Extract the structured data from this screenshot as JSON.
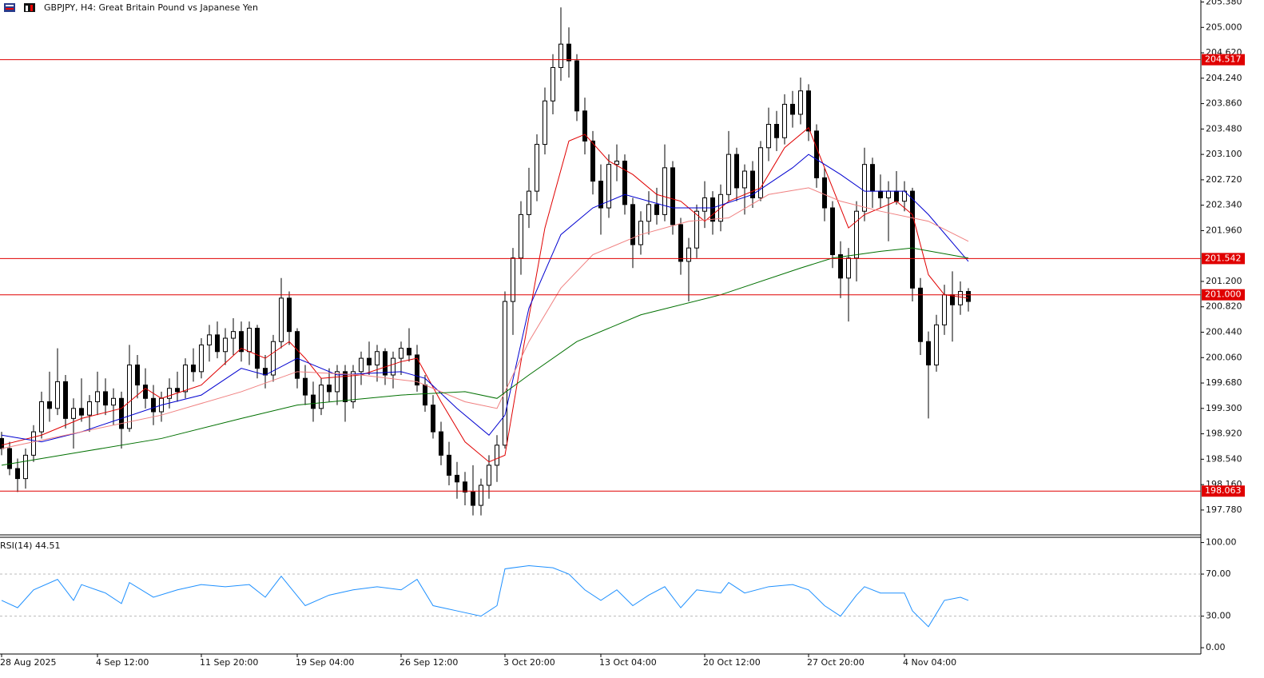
{
  "chart_data": {
    "type": "candlestick",
    "title": "GBPJPY, H4:  Great Britain Pound vs Japanese Yen",
    "categories": [
      "28 Aug 2025",
      null,
      null,
      null,
      null,
      null,
      null,
      null,
      null,
      null,
      null,
      null,
      "4 Sep 12:00",
      null,
      null,
      null,
      null,
      null,
      null,
      null,
      null,
      null,
      null,
      null,
      null,
      "11 Sep 20:00",
      null,
      null,
      null,
      null,
      null,
      null,
      null,
      null,
      null,
      null,
      null,
      "19 Sep 04:00",
      null,
      null,
      null,
      null,
      null,
      null,
      null,
      null,
      null,
      null,
      null,
      null,
      "26 Sep 12:00",
      null,
      null,
      null,
      null,
      null,
      null,
      null,
      null,
      null,
      null,
      null,
      null,
      "3 Oct 20:00",
      null,
      null,
      null,
      null,
      null,
      null,
      null,
      null,
      null,
      null,
      null,
      "13 Oct 04:00",
      null,
      null,
      null,
      null,
      null,
      null,
      null,
      null,
      null,
      null,
      null,
      null,
      "20 Oct 12:00",
      null,
      null,
      null,
      null,
      null,
      null,
      null,
      null,
      null,
      null,
      null,
      null,
      "27 Oct 20:00",
      null,
      null,
      null,
      null,
      null,
      null,
      null,
      null,
      null,
      null,
      null,
      "4 Nov 04:00",
      null,
      null,
      null,
      null,
      null,
      null,
      null,
      null
    ],
    "ohlc": [
      [
        198.85,
        198.95,
        198.6,
        198.7
      ],
      [
        198.7,
        198.8,
        198.3,
        198.4
      ],
      [
        198.4,
        198.55,
        198.05,
        198.25
      ],
      [
        198.25,
        198.7,
        198.1,
        198.6
      ],
      [
        198.6,
        199.05,
        198.5,
        198.95
      ],
      [
        198.95,
        199.55,
        198.85,
        199.4
      ],
      [
        199.4,
        199.85,
        199.1,
        199.3
      ],
      [
        199.3,
        200.2,
        199.2,
        199.7
      ],
      [
        199.7,
        199.8,
        199.0,
        199.15
      ],
      [
        199.15,
        199.45,
        198.7,
        199.3
      ],
      [
        199.3,
        199.75,
        199.1,
        199.2
      ],
      [
        199.2,
        199.5,
        198.95,
        199.4
      ],
      [
        199.4,
        199.85,
        199.2,
        199.55
      ],
      [
        199.55,
        199.75,
        199.2,
        199.35
      ],
      [
        199.35,
        199.6,
        199.05,
        199.45
      ],
      [
        199.45,
        199.55,
        198.7,
        199.0
      ],
      [
        199.0,
        200.25,
        198.95,
        199.95
      ],
      [
        199.95,
        200.1,
        199.45,
        199.65
      ],
      [
        199.65,
        199.9,
        199.3,
        199.45
      ],
      [
        199.45,
        199.65,
        199.05,
        199.25
      ],
      [
        199.25,
        199.55,
        199.1,
        199.45
      ],
      [
        199.45,
        199.75,
        199.3,
        199.6
      ],
      [
        199.6,
        199.85,
        199.4,
        199.55
      ],
      [
        199.55,
        200.05,
        199.45,
        199.95
      ],
      [
        199.95,
        200.2,
        199.7,
        199.85
      ],
      [
        199.85,
        200.35,
        199.75,
        200.25
      ],
      [
        200.25,
        200.55,
        200.0,
        200.4
      ],
      [
        200.4,
        200.6,
        200.05,
        200.15
      ],
      [
        200.15,
        200.5,
        199.95,
        200.35
      ],
      [
        200.35,
        200.65,
        200.1,
        200.45
      ],
      [
        200.45,
        200.6,
        200.0,
        200.15
      ],
      [
        200.15,
        200.6,
        199.95,
        200.5
      ],
      [
        200.5,
        200.55,
        199.75,
        199.9
      ],
      [
        199.9,
        200.1,
        199.6,
        199.8
      ],
      [
        199.8,
        200.4,
        199.7,
        200.3
      ],
      [
        200.3,
        201.25,
        200.2,
        200.95
      ],
      [
        200.95,
        201.05,
        200.25,
        200.45
      ],
      [
        200.45,
        200.5,
        199.6,
        199.75
      ],
      [
        199.75,
        199.95,
        199.35,
        199.5
      ],
      [
        199.5,
        199.7,
        199.1,
        199.3
      ],
      [
        199.3,
        199.75,
        199.2,
        199.65
      ],
      [
        199.65,
        199.9,
        199.4,
        199.55
      ],
      [
        199.55,
        199.95,
        199.35,
        199.85
      ],
      [
        199.85,
        199.95,
        199.1,
        199.4
      ],
      [
        199.4,
        199.95,
        199.3,
        199.85
      ],
      [
        199.85,
        200.15,
        199.65,
        200.05
      ],
      [
        200.05,
        200.3,
        199.8,
        199.95
      ],
      [
        199.95,
        200.25,
        199.7,
        200.15
      ],
      [
        200.15,
        200.2,
        199.65,
        199.8
      ],
      [
        199.8,
        200.15,
        199.6,
        200.05
      ],
      [
        200.05,
        200.3,
        199.8,
        200.2
      ],
      [
        200.2,
        200.5,
        200.0,
        200.1
      ],
      [
        200.1,
        200.25,
        199.55,
        199.65
      ],
      [
        199.65,
        199.8,
        199.25,
        199.35
      ],
      [
        199.35,
        199.5,
        198.85,
        198.95
      ],
      [
        198.95,
        199.1,
        198.45,
        198.6
      ],
      [
        198.6,
        198.8,
        198.15,
        198.3
      ],
      [
        198.3,
        198.5,
        197.95,
        198.2
      ],
      [
        198.2,
        198.35,
        197.85,
        198.05
      ],
      [
        198.05,
        198.45,
        197.7,
        197.85
      ],
      [
        197.85,
        198.25,
        197.7,
        198.15
      ],
      [
        198.15,
        198.6,
        197.95,
        198.45
      ],
      [
        198.45,
        198.9,
        198.2,
        198.75
      ],
      [
        198.75,
        201.05,
        198.7,
        200.9
      ],
      [
        200.9,
        201.7,
        200.4,
        201.55
      ],
      [
        201.55,
        202.4,
        201.3,
        202.2
      ],
      [
        202.2,
        202.9,
        202.0,
        202.55
      ],
      [
        202.55,
        203.4,
        202.4,
        203.25
      ],
      [
        203.25,
        204.1,
        203.1,
        203.9
      ],
      [
        203.9,
        204.6,
        203.7,
        204.4
      ],
      [
        204.4,
        205.3,
        204.2,
        204.75
      ],
      [
        204.75,
        205.0,
        204.25,
        204.5
      ],
      [
        204.5,
        204.6,
        203.6,
        203.75
      ],
      [
        203.75,
        203.95,
        203.1,
        203.3
      ],
      [
        203.3,
        203.45,
        202.5,
        202.7
      ],
      [
        202.7,
        202.95,
        201.9,
        202.3
      ],
      [
        202.3,
        203.1,
        202.15,
        202.95
      ],
      [
        202.95,
        203.25,
        202.7,
        203.0
      ],
      [
        203.0,
        203.1,
        202.2,
        202.35
      ],
      [
        202.35,
        202.45,
        201.4,
        201.75
      ],
      [
        201.75,
        202.25,
        201.6,
        202.1
      ],
      [
        202.1,
        202.55,
        201.9,
        202.35
      ],
      [
        202.35,
        202.6,
        202.05,
        202.2
      ],
      [
        202.2,
        203.25,
        202.1,
        202.9
      ],
      [
        202.9,
        203.0,
        201.9,
        202.05
      ],
      [
        202.05,
        202.15,
        201.3,
        201.5
      ],
      [
        201.5,
        201.85,
        200.9,
        201.7
      ],
      [
        201.7,
        202.35,
        201.55,
        202.25
      ],
      [
        202.25,
        202.7,
        202.0,
        202.45
      ],
      [
        202.45,
        202.55,
        201.9,
        202.1
      ],
      [
        202.1,
        202.65,
        201.95,
        202.5
      ],
      [
        202.5,
        203.45,
        202.4,
        203.1
      ],
      [
        203.1,
        203.2,
        202.4,
        202.6
      ],
      [
        202.6,
        202.95,
        202.2,
        202.85
      ],
      [
        202.85,
        203.0,
        202.3,
        202.45
      ],
      [
        202.45,
        203.3,
        202.4,
        203.2
      ],
      [
        203.2,
        203.8,
        203.0,
        203.55
      ],
      [
        203.55,
        203.75,
        203.15,
        203.35
      ],
      [
        203.35,
        204.0,
        203.25,
        203.85
      ],
      [
        203.85,
        204.05,
        203.5,
        203.7
      ],
      [
        203.7,
        204.25,
        203.55,
        204.05
      ],
      [
        204.05,
        204.15,
        203.3,
        203.45
      ],
      [
        203.45,
        203.55,
        202.6,
        202.75
      ],
      [
        202.75,
        202.9,
        202.1,
        202.3
      ],
      [
        202.3,
        202.4,
        201.4,
        201.6
      ],
      [
        201.6,
        201.8,
        200.95,
        201.25
      ],
      [
        201.25,
        201.7,
        200.6,
        201.55
      ],
      [
        201.55,
        202.4,
        201.2,
        202.25
      ],
      [
        202.25,
        203.2,
        202.1,
        202.95
      ],
      [
        202.95,
        203.05,
        202.3,
        202.55
      ],
      [
        202.55,
        202.8,
        202.3,
        202.45
      ],
      [
        202.45,
        202.7,
        201.8,
        202.55
      ],
      [
        202.55,
        202.85,
        202.35,
        202.4
      ],
      [
        202.4,
        202.7,
        202.25,
        202.55
      ],
      [
        202.55,
        202.6,
        200.9,
        201.1
      ],
      [
        201.1,
        201.25,
        200.1,
        200.3
      ],
      [
        200.3,
        200.45,
        199.15,
        199.95
      ],
      [
        199.95,
        200.7,
        199.85,
        200.55
      ],
      [
        200.55,
        201.15,
        200.4,
        201.0
      ],
      [
        201.0,
        201.35,
        200.3,
        200.85
      ],
      [
        200.85,
        201.2,
        200.7,
        201.05
      ],
      [
        201.05,
        201.1,
        200.75,
        200.9
      ]
    ],
    "ylim": [
      197.42,
      205.41
    ],
    "yticks": [
      {
        "value": 205.38,
        "label": "205.380"
      },
      {
        "value": 205,
        "label": "205.000"
      },
      {
        "value": 204.62,
        "label": "204.620"
      },
      {
        "value": 204.24,
        "label": "204.240"
      },
      {
        "value": 203.86,
        "label": "203.860"
      },
      {
        "value": 203.48,
        "label": "203.480"
      },
      {
        "value": 203.1,
        "label": "203.100"
      },
      {
        "value": 202.72,
        "label": "202.720"
      },
      {
        "value": 202.34,
        "label": "202.340"
      },
      {
        "value": 201.96,
        "label": "201.960"
      },
      {
        "value": 201.2,
        "label": "201.200"
      },
      {
        "value": 200.82,
        "label": "200.820"
      },
      {
        "value": 200.44,
        "label": "200.440"
      },
      {
        "value": 200.06,
        "label": "200.060"
      },
      {
        "value": 199.68,
        "label": "199.680"
      },
      {
        "value": 199.3,
        "label": "199.300"
      },
      {
        "value": 198.92,
        "label": "198.920"
      },
      {
        "value": 198.54,
        "label": "198.540"
      },
      {
        "value": 198.16,
        "label": "198.160"
      },
      {
        "value": 197.78,
        "label": "197.780"
      }
    ],
    "levels": [
      {
        "value": 204.517,
        "label": "204.517"
      },
      {
        "value": 201.542,
        "label": "201.542"
      },
      {
        "value": 201,
        "label": "201.000"
      },
      {
        "value": 198.063,
        "label": "198.063"
      }
    ],
    "level_color": "#e00000",
    "bull_color": "#ffffff",
    "bear_color": "#000000",
    "series": [
      {
        "color": "#e00000",
        "x": [
          0,
          5,
          10,
          15,
          18,
          20,
          25,
          30,
          33,
          36,
          38,
          40,
          45,
          50,
          52,
          55,
          58,
          61,
          63,
          65,
          68,
          71,
          73,
          76,
          79,
          82,
          85,
          88,
          91,
          95,
          98,
          101,
          104,
          106,
          108,
          112,
          114,
          116,
          118,
          121
        ],
        "values": [
          198.75,
          198.9,
          199.15,
          199.3,
          199.6,
          199.45,
          199.65,
          200.2,
          200.05,
          200.3,
          200.05,
          199.75,
          199.8,
          200.0,
          200.05,
          199.4,
          198.8,
          198.5,
          198.6,
          200.0,
          202.0,
          203.3,
          203.4,
          203.0,
          202.8,
          202.5,
          202.4,
          202.1,
          202.4,
          202.6,
          203.2,
          203.5,
          202.6,
          202.0,
          202.2,
          202.4,
          202.2,
          201.3,
          201.0,
          200.95
        ]
      },
      {
        "color": "#0000d0",
        "x": [
          0,
          5,
          10,
          15,
          20,
          25,
          30,
          33,
          37,
          42,
          50,
          53,
          57,
          61,
          63,
          66,
          70,
          74,
          78,
          84,
          89,
          94,
          99,
          101,
          105,
          108,
          113,
          116,
          121
        ],
        "values": [
          198.9,
          198.8,
          198.95,
          199.15,
          199.35,
          199.5,
          199.9,
          199.8,
          200.05,
          199.8,
          199.85,
          199.75,
          199.3,
          198.9,
          199.2,
          200.8,
          201.9,
          202.3,
          202.5,
          202.3,
          202.3,
          202.5,
          202.9,
          203.1,
          202.8,
          202.55,
          202.55,
          202.2,
          201.5
        ]
      },
      {
        "color": "#f08080",
        "x": [
          0,
          10,
          20,
          30,
          37,
          45,
          52,
          58,
          62,
          66,
          70,
          74,
          80,
          86,
          91,
          96,
          101,
          105,
          110,
          116,
          121
        ],
        "values": [
          198.7,
          198.95,
          199.2,
          199.55,
          199.85,
          199.8,
          199.7,
          199.4,
          199.3,
          200.3,
          201.1,
          201.6,
          201.9,
          202.1,
          202.15,
          202.5,
          202.6,
          202.4,
          202.25,
          202.1,
          201.8
        ]
      },
      {
        "color": "#007000",
        "x": [
          0,
          10,
          20,
          30,
          37,
          50,
          58,
          62,
          66,
          72,
          80,
          90,
          100,
          104,
          110,
          114,
          121
        ],
        "values": [
          198.45,
          198.65,
          198.85,
          199.15,
          199.35,
          199.5,
          199.55,
          199.45,
          199.8,
          200.3,
          200.7,
          201.0,
          201.4,
          201.55,
          201.65,
          201.7,
          201.55
        ]
      }
    ],
    "rsi": {
      "label": "RSI(14) 44.51",
      "color": "#1e90ff",
      "ylim": [
        -6,
        105
      ],
      "yticks": [
        {
          "value": 100,
          "label": "100.00"
        },
        {
          "value": 70,
          "label": "70.00"
        },
        {
          "value": 30,
          "label": "30.00"
        },
        {
          "value": 0,
          "label": "0.00"
        }
      ],
      "levels": [
        70,
        30
      ],
      "x": [
        0,
        2,
        4,
        7,
        9,
        10,
        13,
        15,
        16,
        19,
        22,
        25,
        28,
        31,
        33,
        35,
        38,
        41,
        44,
        47,
        50,
        52,
        54,
        57,
        60,
        62,
        63,
        66,
        69,
        71,
        73,
        75,
        77,
        79,
        81,
        83,
        85,
        87,
        90,
        91,
        93,
        96,
        99,
        101,
        103,
        105,
        107,
        108,
        110,
        113,
        114,
        116,
        118,
        120,
        121
      ],
      "values": [
        45,
        38,
        55,
        65,
        45,
        60,
        52,
        42,
        62,
        48,
        55,
        60,
        58,
        60,
        48,
        68,
        40,
        50,
        55,
        58,
        55,
        65,
        40,
        35,
        30,
        40,
        75,
        78,
        76,
        70,
        55,
        45,
        55,
        40,
        50,
        58,
        38,
        55,
        52,
        62,
        52,
        58,
        60,
        55,
        40,
        30,
        50,
        58,
        52,
        52,
        35,
        20,
        45,
        48,
        45
      ]
    }
  }
}
